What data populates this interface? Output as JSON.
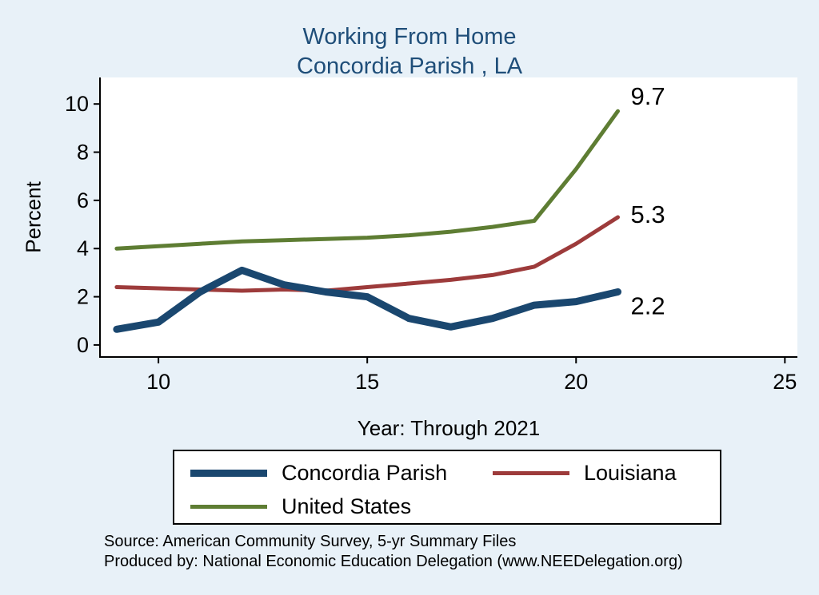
{
  "title": {
    "line1": "Working From Home",
    "line2": "Concordia Parish , LA"
  },
  "chart_data": {
    "type": "line",
    "title": "Working From Home Concordia Parish , LA",
    "xlabel": "Year: Through 2021",
    "ylabel": "Percent",
    "x": [
      9,
      10,
      11,
      12,
      13,
      14,
      15,
      16,
      17,
      18,
      19,
      20,
      21
    ],
    "xticks": [
      10,
      15,
      20,
      25
    ],
    "yticks": [
      0,
      2,
      4,
      6,
      8,
      10
    ],
    "xlim": [
      8.6,
      25.3
    ],
    "ylim": [
      -0.5,
      11.1
    ],
    "grid": false,
    "legend_position": "bottom",
    "series": [
      {
        "name": "Concordia Parish",
        "color": "#1a476f",
        "width": 9,
        "values": [
          0.65,
          0.95,
          2.2,
          3.1,
          2.5,
          2.2,
          2.0,
          1.1,
          0.75,
          1.1,
          1.65,
          1.8,
          2.2
        ],
        "end_label": "2.2"
      },
      {
        "name": "Louisiana",
        "color": "#9d3b3b",
        "width": 5,
        "values": [
          2.4,
          2.35,
          2.3,
          2.25,
          2.3,
          2.25,
          2.4,
          2.55,
          2.7,
          2.9,
          3.25,
          4.2,
          5.3
        ],
        "end_label": "5.3"
      },
      {
        "name": "United States",
        "color": "#5e7d33",
        "width": 5,
        "values": [
          4.0,
          4.1,
          4.2,
          4.3,
          4.35,
          4.4,
          4.45,
          4.55,
          4.7,
          4.9,
          5.15,
          7.3,
          9.7
        ],
        "end_label": "9.7"
      }
    ]
  },
  "footer": {
    "line1": "Source: American Community Survey, 5-yr Summary Files",
    "line2": "Produced by: National Economic Education Delegation (www.NEEDelegation.org)"
  },
  "colors": {
    "background": "#e8f1f8",
    "plot_background": "#ffffff",
    "title": "#1f4e79",
    "axis": "#000000"
  }
}
